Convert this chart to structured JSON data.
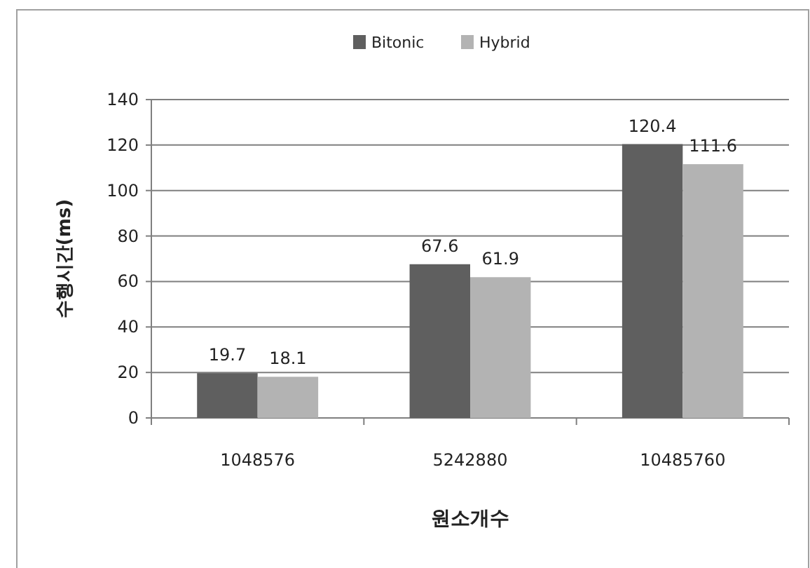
{
  "chart_data": {
    "type": "bar",
    "categories": [
      "1048576",
      "5242880",
      "10485760"
    ],
    "series": [
      {
        "name": "Bitonic",
        "color": "#5f5f5f",
        "values": [
          19.7,
          67.6,
          120.4
        ]
      },
      {
        "name": "Hybrid",
        "color": "#b3b3b3",
        "values": [
          18.1,
          61.9,
          111.6
        ]
      }
    ],
    "xlabel": "원소개수",
    "ylabel": "수행시간(ms)",
    "ylim": [
      0,
      140
    ],
    "yticks": [
      0,
      20,
      40,
      60,
      80,
      100,
      120,
      140
    ],
    "grid": "y",
    "legend": "top",
    "data_labels": true
  }
}
